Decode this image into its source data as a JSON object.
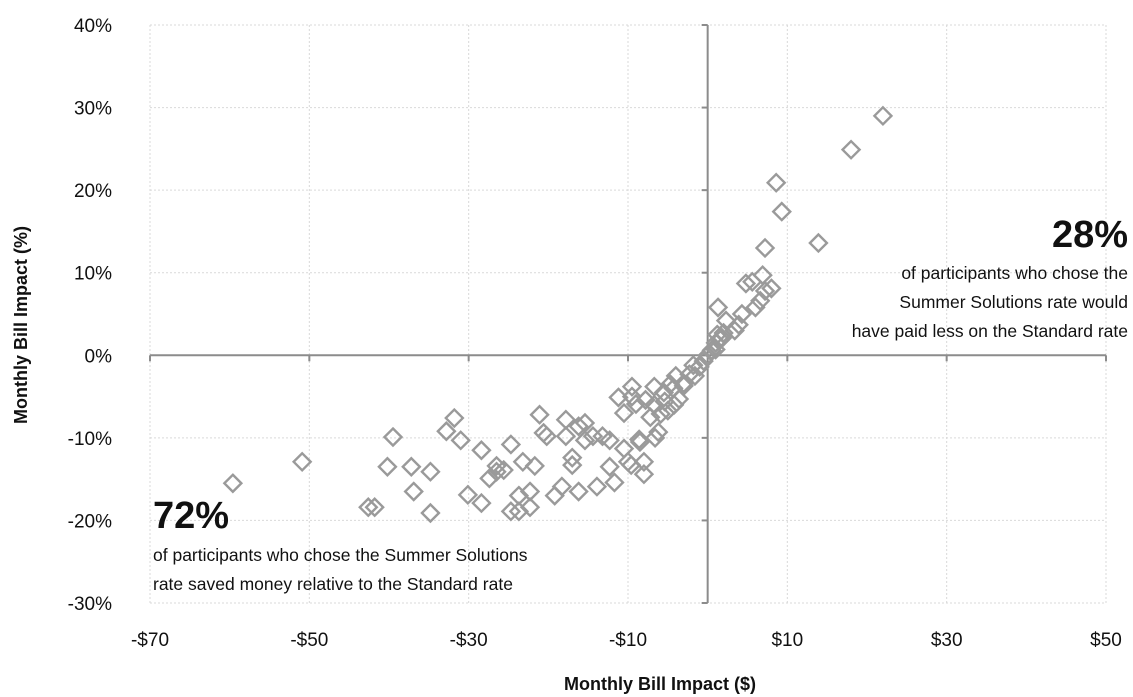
{
  "chart_data": {
    "type": "scatter",
    "xlabel": "Monthly Bill Impact ($)",
    "ylabel": "Monthly Bill Impact (%)",
    "xlim": [
      -70,
      50
    ],
    "ylim": [
      -30,
      40
    ],
    "x_ticks": [
      -70,
      -50,
      -30,
      -10,
      10,
      30,
      50
    ],
    "x_tick_labels": [
      "-$70",
      "-$50",
      "-$30",
      "-$10",
      "$10",
      "$30",
      "$50"
    ],
    "y_ticks": [
      40,
      30,
      20,
      10,
      0,
      -10,
      -20,
      -30
    ],
    "y_tick_labels": [
      "40%",
      "30%",
      "20%",
      "10%",
      "0%",
      "-10%",
      "-20%",
      "-30%"
    ],
    "grid": true,
    "marker": "diamond-open",
    "colors": {
      "marker": "#9a9a9a",
      "axis": "#8c8c8c",
      "grid": "#d9d9d9",
      "text": "#111111"
    },
    "annotations": {
      "right": {
        "big": "28%",
        "lines": [
          "of participants who chose the",
          "Summer Solutions rate would",
          "have paid less on the Standard rate"
        ]
      },
      "left": {
        "big": "72%",
        "lines": [
          "of participants who chose the Summer Solutions",
          "rate saved money relative to the Standard rate"
        ]
      }
    },
    "points": [
      [
        -59.6,
        -15.5
      ],
      [
        -50.9,
        -12.9
      ],
      [
        -42.6,
        -18.4
      ],
      [
        -41.8,
        -18.4
      ],
      [
        -39.5,
        -9.9
      ],
      [
        -40.2,
        -13.5
      ],
      [
        -37.2,
        -13.5
      ],
      [
        -36.9,
        -16.5
      ],
      [
        -34.8,
        -14.1
      ],
      [
        -34.8,
        -19.1
      ],
      [
        -32.8,
        -9.2
      ],
      [
        -31.8,
        -7.6
      ],
      [
        -31.0,
        -10.3
      ],
      [
        -30.1,
        -16.9
      ],
      [
        -28.4,
        -17.9
      ],
      [
        -28.4,
        -11.5
      ],
      [
        -27.4,
        -14.9
      ],
      [
        -26.5,
        -13.4
      ],
      [
        -26.5,
        -14.1
      ],
      [
        -25.6,
        -13.9
      ],
      [
        -24.7,
        -10.8
      ],
      [
        -24.7,
        -18.9
      ],
      [
        -23.7,
        -18.9
      ],
      [
        -23.7,
        -17.0
      ],
      [
        -23.2,
        -12.9
      ],
      [
        -22.3,
        -16.5
      ],
      [
        -22.3,
        -18.4
      ],
      [
        -21.7,
        -13.4
      ],
      [
        -21.1,
        -7.2
      ],
      [
        -20.6,
        -9.4
      ],
      [
        -20.2,
        -9.8
      ],
      [
        -19.2,
        -17.0
      ],
      [
        -18.3,
        -15.9
      ],
      [
        -17.8,
        -7.8
      ],
      [
        -17.8,
        -9.8
      ],
      [
        -17.0,
        -12.4
      ],
      [
        -17.0,
        -13.3
      ],
      [
        -16.2,
        -16.5
      ],
      [
        -16.2,
        -8.6
      ],
      [
        -15.4,
        -10.3
      ],
      [
        -15.4,
        -8.2
      ],
      [
        -14.4,
        -9.8
      ],
      [
        -13.9,
        -15.9
      ],
      [
        -13.2,
        -9.8
      ],
      [
        -12.3,
        -13.5
      ],
      [
        -12.3,
        -10.3
      ],
      [
        -11.7,
        -15.4
      ],
      [
        -11.2,
        -5.1
      ],
      [
        -10.5,
        -7.0
      ],
      [
        -10.5,
        -11.3
      ],
      [
        -10.0,
        -12.9
      ],
      [
        -9.6,
        -13.3
      ],
      [
        -9.5,
        -5.0
      ],
      [
        -9.5,
        -3.8
      ],
      [
        -9.0,
        -5.9
      ],
      [
        -8.6,
        -10.2
      ],
      [
        -8.5,
        -10.5
      ],
      [
        -8.0,
        -14.4
      ],
      [
        -8.0,
        -12.9
      ],
      [
        -7.8,
        -5.4
      ],
      [
        -7.2,
        -7.5
      ],
      [
        -6.7,
        -6.0
      ],
      [
        -6.7,
        -3.8
      ],
      [
        -6.6,
        -10.0
      ],
      [
        -6.2,
        -9.3
      ],
      [
        -5.9,
        -7.1
      ],
      [
        -5.5,
        -4.5
      ],
      [
        -5.4,
        -5.6
      ],
      [
        -5.0,
        -6.7
      ],
      [
        -4.7,
        -3.5
      ],
      [
        -4.3,
        -4.0
      ],
      [
        -4.2,
        -6.0
      ],
      [
        -4.0,
        -2.5
      ],
      [
        -3.6,
        -5.3
      ],
      [
        -3.0,
        -3.4
      ],
      [
        -3.0,
        -3.7
      ],
      [
        -2.3,
        -2.3
      ],
      [
        -1.8,
        -1.2
      ],
      [
        -1.6,
        -2.5
      ],
      [
        -1.0,
        -1.4
      ],
      [
        -0.5,
        -0.7
      ],
      [
        0.0,
        0.0
      ],
      [
        0.5,
        0.6
      ],
      [
        1.0,
        0.7
      ],
      [
        1.0,
        1.5
      ],
      [
        1.2,
        2.5
      ],
      [
        1.3,
        5.8
      ],
      [
        1.6,
        1.9
      ],
      [
        1.8,
        2.1
      ],
      [
        2.0,
        2.7
      ],
      [
        2.3,
        4.2
      ],
      [
        3.4,
        3.0
      ],
      [
        3.9,
        3.7
      ],
      [
        4.3,
        5.0
      ],
      [
        4.8,
        8.7
      ],
      [
        5.6,
        8.9
      ],
      [
        6.0,
        5.8
      ],
      [
        6.6,
        6.6
      ],
      [
        6.9,
        9.7
      ],
      [
        7.2,
        13.0
      ],
      [
        7.2,
        7.8
      ],
      [
        8.0,
        8.1
      ],
      [
        8.6,
        20.9
      ],
      [
        9.3,
        17.4
      ],
      [
        13.9,
        13.6
      ],
      [
        18.0,
        24.9
      ],
      [
        22.0,
        29.0
      ]
    ]
  }
}
